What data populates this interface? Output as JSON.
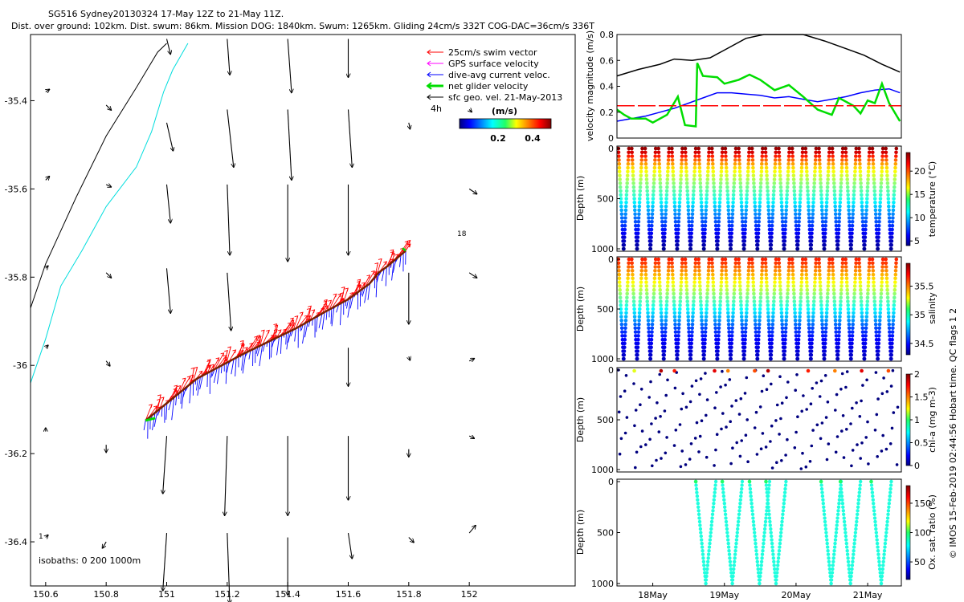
{
  "header": {
    "line1": "SG516 Sydney20130324 17-May 12Z to 21-May 11Z.",
    "line2": "Dist. over ground: 102km. Dist. swum: 86km. Mission DOG: 1840km. Swum: 1265km. Gliding 24cm/s 332T COG-DAC=36cm/s 336T"
  },
  "side_note": "© IMOS 15-Feb-2019 02:44:56 Hobart time. QC flags 1  2",
  "colors": {
    "swim": "#ff0000",
    "gps": "#ff00ff",
    "dac": "#0000ff",
    "net": "#00dd00",
    "geo": "#000000",
    "coast": "#000000",
    "isobath200": "#00dddd"
  },
  "chart_data": [
    {
      "id": "map",
      "type": "scatter",
      "title": "",
      "xlim": [
        150.55,
        152.35
      ],
      "ylim": [
        -36.5,
        -35.25
      ],
      "x_ticks": [
        "150.6",
        "150.8",
        "151",
        "151.2",
        "151.4",
        "151.6",
        "151.8",
        "152"
      ],
      "x_tick_values": [
        150.6,
        150.8,
        151.0,
        151.2,
        151.4,
        151.6,
        151.8,
        152.0
      ],
      "y_ticks": [
        "-35.4",
        "-35.6",
        "-35.8",
        "-36",
        "-36.2",
        "-36.4"
      ],
      "y_tick_values": [
        -35.4,
        -35.6,
        -35.8,
        -36.0,
        -36.2,
        -36.4
      ],
      "legend": [
        {
          "label": "25cm/s swim vector",
          "color": "#ff0000"
        },
        {
          "label": "GPS surface velocity",
          "color": "#ff00ff"
        },
        {
          "label": "dive-avg current veloc.",
          "color": "#0000ff"
        },
        {
          "label": "net glider velocity",
          "color": "#00dd00"
        },
        {
          "label": "sfc geo. vel. 21-May-2013",
          "color": "#000000"
        }
      ],
      "colorbar": {
        "label": "(m/s)",
        "ticks": [
          "0.2",
          "0.4"
        ],
        "tick_values": [
          0.2,
          0.4
        ],
        "range": [
          0,
          0.5
        ]
      },
      "annotations": [
        "4h",
        "18",
        "isobaths: 0   200   1000m",
        "1"
      ],
      "coastline": {
        "x": [
          150.55,
          150.6,
          150.7,
          150.8,
          150.9,
          150.97,
          151.0
        ],
        "y": [
          -35.87,
          -35.77,
          -35.62,
          -35.48,
          -35.37,
          -35.29,
          -35.27
        ]
      },
      "isobath_200": {
        "x": [
          150.55,
          150.6,
          150.65,
          150.72,
          150.8,
          150.9,
          150.95,
          150.99,
          151.02,
          151.07
        ],
        "y": [
          -36.04,
          -35.94,
          -35.82,
          -35.74,
          -35.64,
          -35.55,
          -35.47,
          -35.38,
          -35.33,
          -35.27
        ]
      },
      "track": {
        "x": [
          150.93,
          151.1,
          151.25,
          151.43,
          151.52,
          151.6,
          151.67,
          151.7,
          151.73,
          151.79
        ],
        "y": [
          -36.125,
          -36.03,
          -35.975,
          -35.915,
          -35.88,
          -35.85,
          -35.815,
          -35.79,
          -35.775,
          -35.74
        ]
      },
      "geo_vectors": [
        {
          "x": 150.6,
          "y": -35.38,
          "u": 0.03,
          "v": 0.02
        },
        {
          "x": 150.8,
          "y": -35.41,
          "u": 0.04,
          "v": -0.04
        },
        {
          "x": 151.0,
          "y": -35.45,
          "u": 0.05,
          "v": -0.22
        },
        {
          "x": 151.2,
          "y": -35.42,
          "u": 0.05,
          "v": -0.45
        },
        {
          "x": 151.4,
          "y": -35.42,
          "u": 0.03,
          "v": -0.55
        },
        {
          "x": 151.6,
          "y": -35.42,
          "u": 0.03,
          "v": -0.45
        },
        {
          "x": 151.8,
          "y": -35.45,
          "u": 0.01,
          "v": -0.05
        },
        {
          "x": 152.0,
          "y": -35.42,
          "u": 0.02,
          "v": -0.02
        },
        {
          "x": 151.0,
          "y": -35.26,
          "u": 0.03,
          "v": -0.12
        },
        {
          "x": 151.2,
          "y": -35.26,
          "u": 0.02,
          "v": -0.28
        },
        {
          "x": 151.4,
          "y": -35.26,
          "u": 0.03,
          "v": -0.42
        },
        {
          "x": 151.6,
          "y": -35.26,
          "u": 0.0,
          "v": -0.3
        },
        {
          "x": 150.6,
          "y": -35.58,
          "u": 0.03,
          "v": 0.03
        },
        {
          "x": 150.8,
          "y": -35.59,
          "u": 0.04,
          "v": -0.02
        },
        {
          "x": 151.0,
          "y": -35.59,
          "u": 0.03,
          "v": -0.3
        },
        {
          "x": 151.2,
          "y": -35.59,
          "u": 0.02,
          "v": -0.55
        },
        {
          "x": 151.4,
          "y": -35.59,
          "u": 0.0,
          "v": -0.6
        },
        {
          "x": 151.6,
          "y": -35.59,
          "u": 0.0,
          "v": -0.55
        },
        {
          "x": 152.0,
          "y": -35.6,
          "u": 0.06,
          "v": -0.04
        },
        {
          "x": 150.6,
          "y": -35.78,
          "u": 0.02,
          "v": 0.02
        },
        {
          "x": 150.8,
          "y": -35.79,
          "u": 0.04,
          "v": -0.04
        },
        {
          "x": 151.0,
          "y": -35.78,
          "u": 0.03,
          "v": -0.35
        },
        {
          "x": 151.2,
          "y": -35.79,
          "u": 0.03,
          "v": -0.45
        },
        {
          "x": 151.8,
          "y": -35.79,
          "u": 0.0,
          "v": -0.4
        },
        {
          "x": 152.0,
          "y": -35.79,
          "u": 0.06,
          "v": -0.04
        },
        {
          "x": 150.6,
          "y": -35.96,
          "u": 0.02,
          "v": 0.02
        },
        {
          "x": 150.8,
          "y": -35.99,
          "u": 0.03,
          "v": -0.04
        },
        {
          "x": 151.6,
          "y": -35.96,
          "u": 0.0,
          "v": -0.3
        },
        {
          "x": 151.8,
          "y": -35.98,
          "u": 0.01,
          "v": -0.03
        },
        {
          "x": 152.0,
          "y": -35.99,
          "u": 0.04,
          "v": 0.02
        },
        {
          "x": 150.6,
          "y": -36.15,
          "u": 0.0,
          "v": 0.03
        },
        {
          "x": 150.8,
          "y": -36.18,
          "u": 0.0,
          "v": -0.06
        },
        {
          "x": 151.0,
          "y": -36.16,
          "u": -0.03,
          "v": -0.45
        },
        {
          "x": 151.2,
          "y": -36.16,
          "u": -0.02,
          "v": -0.62
        },
        {
          "x": 151.4,
          "y": -36.16,
          "u": 0.0,
          "v": -0.62
        },
        {
          "x": 151.6,
          "y": -36.16,
          "u": 0.0,
          "v": -0.5
        },
        {
          "x": 151.8,
          "y": -36.19,
          "u": 0.0,
          "v": -0.06
        },
        {
          "x": 152.0,
          "y": -36.16,
          "u": 0.04,
          "v": -0.02
        },
        {
          "x": 150.6,
          "y": -36.39,
          "u": 0.02,
          "v": 0.02
        },
        {
          "x": 150.8,
          "y": -36.4,
          "u": -0.03,
          "v": -0.05
        },
        {
          "x": 151.0,
          "y": -36.38,
          "u": -0.03,
          "v": -0.45
        },
        {
          "x": 151.2,
          "y": -36.38,
          "u": 0.02,
          "v": -0.55
        },
        {
          "x": 151.4,
          "y": -36.39,
          "u": 0.0,
          "v": -0.45
        },
        {
          "x": 151.6,
          "y": -36.38,
          "u": 0.03,
          "v": -0.2
        },
        {
          "x": 151.8,
          "y": -36.39,
          "u": 0.04,
          "v": -0.04
        },
        {
          "x": 152.0,
          "y": -36.38,
          "u": 0.05,
          "v": 0.06
        }
      ]
    },
    {
      "id": "velocity",
      "type": "line",
      "title": "",
      "ylabel": "velocity magnitude (m/s)",
      "ylim": [
        0,
        0.8
      ],
      "xlim": [
        17.5,
        21.47
      ],
      "y_ticks": [
        "0",
        "0.2",
        "0.4",
        "0.6",
        "0.8"
      ],
      "y_tick_values": [
        0,
        0.2,
        0.4,
        0.6,
        0.8
      ],
      "series": [
        {
          "color": "#000000",
          "x": [
            17.5,
            17.8,
            18.1,
            18.3,
            18.55,
            18.8,
            19.0,
            19.3,
            19.55,
            19.8,
            20.1,
            20.4,
            20.7,
            20.95,
            21.2,
            21.45
          ],
          "y": [
            0.48,
            0.53,
            0.57,
            0.61,
            0.6,
            0.62,
            0.68,
            0.77,
            0.82,
            0.83,
            0.8,
            0.75,
            0.69,
            0.64,
            0.57,
            0.51
          ]
        },
        {
          "color": "#0000ff",
          "x": [
            17.5,
            17.7,
            17.9,
            18.1,
            18.3,
            18.5,
            18.7,
            18.9,
            19.1,
            19.3,
            19.5,
            19.7,
            19.9,
            20.1,
            20.3,
            20.5,
            20.7,
            20.9,
            21.1,
            21.3,
            21.45
          ],
          "y": [
            0.13,
            0.15,
            0.17,
            0.2,
            0.23,
            0.27,
            0.31,
            0.35,
            0.35,
            0.34,
            0.33,
            0.31,
            0.32,
            0.3,
            0.28,
            0.3,
            0.32,
            0.35,
            0.37,
            0.38,
            0.35
          ]
        },
        {
          "color": "#00dd00",
          "x": [
            17.5,
            17.6,
            17.7,
            17.9,
            18.0,
            18.2,
            18.35,
            18.45,
            18.6,
            18.62,
            18.7,
            18.9,
            19.0,
            19.2,
            19.35,
            19.5,
            19.7,
            19.9,
            20.1,
            20.3,
            20.5,
            20.6,
            20.8,
            20.9,
            21.0,
            21.1,
            21.2,
            21.3,
            21.45
          ],
          "y": [
            0.22,
            0.18,
            0.15,
            0.15,
            0.12,
            0.18,
            0.32,
            0.1,
            0.09,
            0.58,
            0.48,
            0.47,
            0.42,
            0.45,
            0.49,
            0.45,
            0.37,
            0.41,
            0.32,
            0.22,
            0.18,
            0.31,
            0.25,
            0.19,
            0.29,
            0.27,
            0.42,
            0.27,
            0.13
          ]
        },
        {
          "color": "#ff0000",
          "dashed": true,
          "x": [
            17.5,
            21.47
          ],
          "y": [
            0.25,
            0.25
          ]
        }
      ]
    },
    {
      "id": "temperature",
      "type": "scatter",
      "title": "",
      "ylabel": "Depth (m)",
      "y_ticks": [
        "0",
        "500",
        "1000"
      ],
      "y_tick_values": [
        0,
        500,
        1000
      ],
      "ylim": [
        1000,
        0
      ],
      "colorbar": {
        "label": "temperature (°C)",
        "ticks": [
          "5",
          "10",
          "15",
          "20"
        ],
        "tick_values": [
          5,
          10,
          15,
          20
        ],
        "range": [
          4,
          24
        ]
      },
      "n_dives": 21,
      "x_start": 17.5,
      "x_end": 21.42,
      "profile": {
        "depth": [
          0,
          50,
          100,
          200,
          300,
          400,
          500,
          600,
          700,
          800,
          900,
          1000
        ],
        "value": [
          23.5,
          22,
          20,
          17,
          15,
          13.5,
          12,
          10,
          8.5,
          7,
          5.5,
          4.5
        ]
      }
    },
    {
      "id": "salinity",
      "type": "scatter",
      "title": "",
      "ylabel": "Depth (m)",
      "y_ticks": [
        "0",
        "500",
        "1000"
      ],
      "y_tick_values": [
        0,
        500,
        1000
      ],
      "ylim": [
        1000,
        0
      ],
      "colorbar": {
        "label": "salinity",
        "ticks": [
          "34.5",
          "35",
          "35.5"
        ],
        "tick_values": [
          34.5,
          35,
          35.5
        ],
        "range": [
          34.3,
          35.9
        ]
      },
      "n_dives": 21,
      "x_start": 17.5,
      "x_end": 21.42,
      "profile": {
        "depth": [
          0,
          50,
          100,
          200,
          300,
          400,
          500,
          600,
          700,
          800,
          900,
          1000
        ],
        "value": [
          35.65,
          35.6,
          35.5,
          35.35,
          35.2,
          35.05,
          34.9,
          34.75,
          34.6,
          34.5,
          34.45,
          34.4
        ]
      }
    },
    {
      "id": "chla",
      "type": "scatter",
      "title": "",
      "ylabel": "Depth (m)",
      "y_ticks": [
        "0",
        "500",
        "1000"
      ],
      "y_tick_values": [
        0,
        500,
        1000
      ],
      "ylim": [
        1000,
        0
      ],
      "colorbar": {
        "label": "chl-a (mg m-3)",
        "ticks": [
          "0",
          "0.5",
          "1",
          "1.5",
          "2"
        ],
        "tick_values": [
          0,
          0.5,
          1,
          1.5,
          2
        ],
        "range": [
          0,
          2
        ]
      },
      "n_dives": 21,
      "x_start": 17.5,
      "x_end": 21.42,
      "surface_values": [
        0.6,
        1.2,
        0.2,
        1.9,
        1.7,
        0.2,
        0.9,
        1.8,
        1.5,
        0.8,
        1.6,
        1.9,
        0.3,
        0.4,
        1.7,
        0.2,
        1.5,
        1.0,
        1.8,
        0.3,
        1.6
      ]
    },
    {
      "id": "oxygen",
      "type": "scatter",
      "title": "",
      "ylabel": "Depth (m)",
      "y_ticks": [
        "0",
        "500",
        "1000"
      ],
      "y_tick_values": [
        0,
        500,
        1000
      ],
      "ylim": [
        1000,
        0
      ],
      "colorbar": {
        "label": "Ox. sat. ratio (%)",
        "ticks": [
          "50",
          "100",
          "150"
        ],
        "tick_values": [
          50,
          100,
          150
        ],
        "range": [
          20,
          180
        ]
      },
      "x_ticks": [
        "18May",
        "19May",
        "20May",
        "21May"
      ],
      "x_tick_values": [
        18,
        19,
        20,
        21
      ],
      "xlim": [
        17.5,
        21.47
      ],
      "dive_starts": [
        18.6,
        18.97,
        19.35,
        19.58,
        20.35,
        20.62,
        21.05
      ],
      "value": 85
    }
  ]
}
